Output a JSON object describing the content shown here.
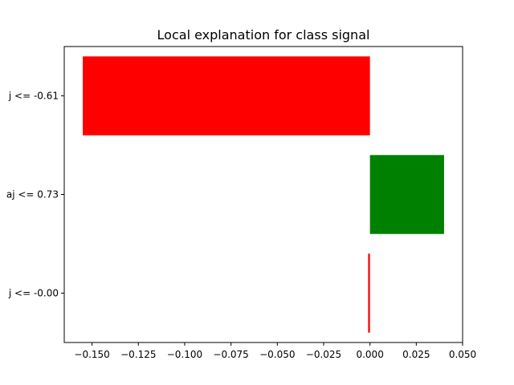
{
  "chart_data": {
    "type": "bar",
    "orientation": "horizontal",
    "title": "Local explanation for class signal",
    "xlabel": "",
    "ylabel": "",
    "xlim": [
      -0.165,
      0.05
    ],
    "x_ticks": [
      -0.15,
      -0.125,
      -0.1,
      -0.075,
      -0.05,
      -0.025,
      0.0,
      0.025,
      0.05
    ],
    "x_tick_labels": [
      "−0.150",
      "−0.125",
      "−0.100",
      "−0.075",
      "−0.050",
      "−0.025",
      "0.000",
      "0.025",
      "0.050"
    ],
    "categories": [
      "j <= -0.61",
      "aj <= 0.73",
      "j <= -0.00"
    ],
    "values": [
      -0.155,
      0.04,
      -0.001
    ],
    "colors": [
      "#ff0000",
      "#008000",
      "#ff0000"
    ],
    "grid": false
  }
}
